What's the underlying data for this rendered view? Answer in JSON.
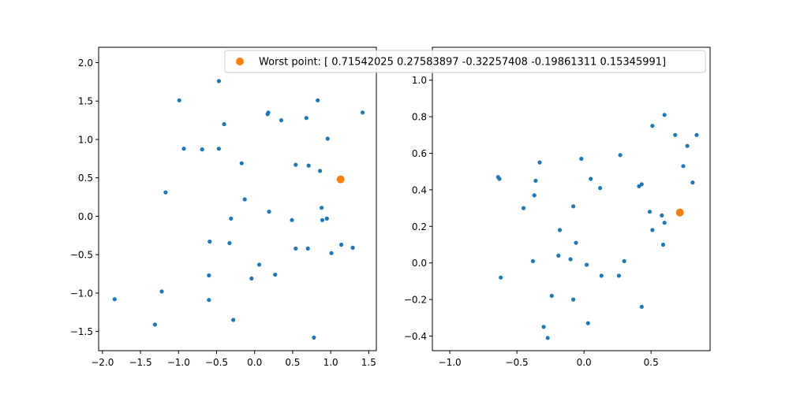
{
  "colors": {
    "points": "#1f77b4",
    "worst": "#ff7f0e",
    "axis": "#000000",
    "legend_border": "#cccccc"
  },
  "legend": {
    "label": "Worst point: [ 0.71542025  0.27583897 -0.32257408 -0.19861311  0.15345991]",
    "placement": "top-left"
  },
  "chart_data": [
    {
      "type": "scatter",
      "title": "",
      "xlabel": "",
      "ylabel": "",
      "xlim": [
        -2.05,
        1.6
      ],
      "ylim": [
        -1.75,
        2.2
      ],
      "xticks": [
        -2.0,
        -1.5,
        -1.0,
        -0.5,
        0.0,
        0.5,
        1.0,
        1.5
      ],
      "xtick_labels": [
        "−2.0",
        "−1.5",
        "−1.0",
        "−0.5",
        "0.0",
        "0.5",
        "1.0",
        "1.5"
      ],
      "yticks": [
        -1.5,
        -1.0,
        -0.5,
        0.0,
        0.5,
        1.0,
        1.5,
        2.0
      ],
      "ytick_labels": [
        "−1.5",
        "−1.0",
        "−0.5",
        "0.0",
        "0.5",
        "1.0",
        "1.5",
        "2.0"
      ],
      "grid": false,
      "series": [
        {
          "role": "points",
          "x": [
            -0.47,
            -0.99,
            -0.4,
            0.18,
            0.17,
            0.35,
            0.68,
            0.83,
            1.42,
            -0.93,
            -0.69,
            -0.47,
            0.96,
            -0.17,
            0.54,
            0.71,
            0.86,
            -1.17,
            -0.13,
            0.88,
            0.19,
            -0.31,
            0.49,
            0.89,
            0.95,
            -0.59,
            -0.33,
            0.54,
            0.7,
            1.14,
            1.01,
            1.29,
            0.06,
            -0.6,
            -0.04,
            0.27,
            -1.22,
            -1.84,
            -0.6,
            -1.31,
            -0.28,
            0.78
          ],
          "y": [
            1.76,
            1.51,
            1.2,
            1.35,
            1.33,
            1.25,
            1.28,
            1.51,
            1.35,
            0.88,
            0.87,
            0.88,
            1.01,
            0.69,
            0.67,
            0.66,
            0.59,
            0.31,
            0.22,
            0.11,
            0.06,
            -0.03,
            -0.05,
            -0.05,
            -0.03,
            -0.33,
            -0.35,
            -0.42,
            -0.42,
            -0.37,
            -0.48,
            -0.41,
            -0.63,
            -0.77,
            -0.81,
            -0.76,
            -0.98,
            -1.08,
            -1.09,
            -1.41,
            -1.35,
            -1.58
          ]
        },
        {
          "role": "worst",
          "x": [
            1.13
          ],
          "y": [
            0.48
          ]
        }
      ]
    },
    {
      "type": "scatter",
      "title": "",
      "xlabel": "",
      "ylabel": "",
      "xlim": [
        -1.13,
        0.94
      ],
      "ylim": [
        -0.48,
        1.18
      ],
      "xticks": [
        -1.0,
        -0.5,
        0.0,
        0.5
      ],
      "xtick_labels": [
        "−1.0",
        "−0.5",
        "0.0",
        "0.5"
      ],
      "yticks": [
        -0.4,
        -0.2,
        0.0,
        0.2,
        0.4,
        0.6,
        0.8,
        1.0
      ],
      "ytick_labels": [
        "−0.4",
        "−0.2",
        "0.0",
        "0.2",
        "0.4",
        "0.6",
        "0.8",
        "1.0"
      ],
      "grid": false,
      "series": [
        {
          "role": "points",
          "x": [
            0.6,
            0.51,
            0.68,
            0.77,
            0.84,
            0.27,
            0.74,
            -0.33,
            0.81,
            -0.02,
            -0.64,
            -0.63,
            0.05,
            -0.36,
            0.43,
            0.41,
            0.12,
            -0.37,
            -0.08,
            -0.45,
            0.49,
            0.58,
            0.6,
            0.72,
            0.51,
            -0.18,
            -0.06,
            0.59,
            -0.19,
            -0.1,
            -0.38,
            0.3,
            0.02,
            0.26,
            0.13,
            -0.62,
            -0.24,
            -0.08,
            0.43,
            0.03,
            -0.3,
            -0.27
          ],
          "y": [
            0.81,
            0.75,
            0.7,
            0.64,
            0.7,
            0.59,
            0.53,
            0.55,
            0.44,
            0.57,
            0.47,
            0.46,
            0.46,
            0.45,
            0.43,
            0.42,
            0.41,
            0.37,
            0.31,
            0.3,
            0.28,
            0.26,
            0.22,
            0.28,
            0.18,
            0.18,
            0.11,
            0.1,
            0.04,
            0.02,
            0.01,
            0.01,
            -0.01,
            -0.07,
            -0.07,
            -0.08,
            -0.18,
            -0.2,
            -0.24,
            -0.33,
            -0.35,
            -0.41
          ]
        },
        {
          "role": "worst",
          "x": [
            0.715
          ],
          "y": [
            0.276
          ]
        }
      ]
    }
  ]
}
